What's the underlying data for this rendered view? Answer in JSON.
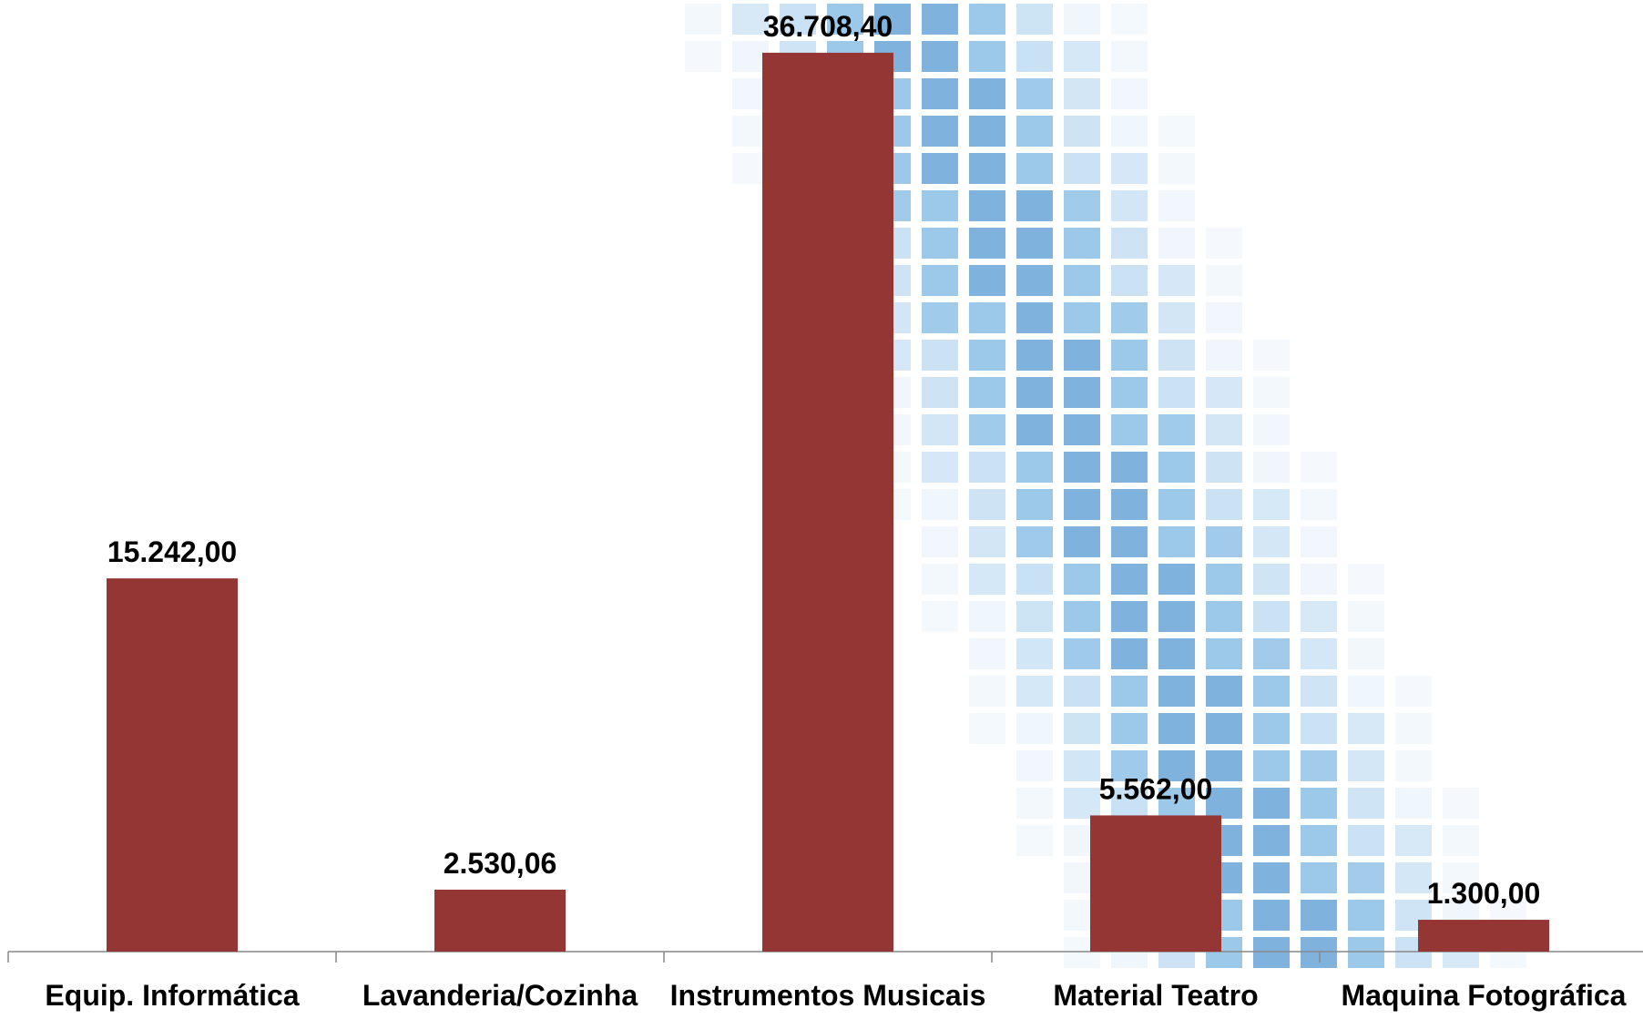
{
  "chart_data": {
    "type": "bar",
    "categories": [
      "Equip. Informática",
      "Lavanderia/Cozinha",
      "Instrumentos Musicais",
      "Material Teatro",
      "Maquina Fotográfica"
    ],
    "values": [
      15242,
      2530.06,
      36708.4,
      5562,
      1300
    ],
    "value_labels": [
      "15.242,00",
      "2.530,06",
      "36.708,40",
      "5.562,00",
      "1.300,00"
    ],
    "color": "#943634"
  }
}
